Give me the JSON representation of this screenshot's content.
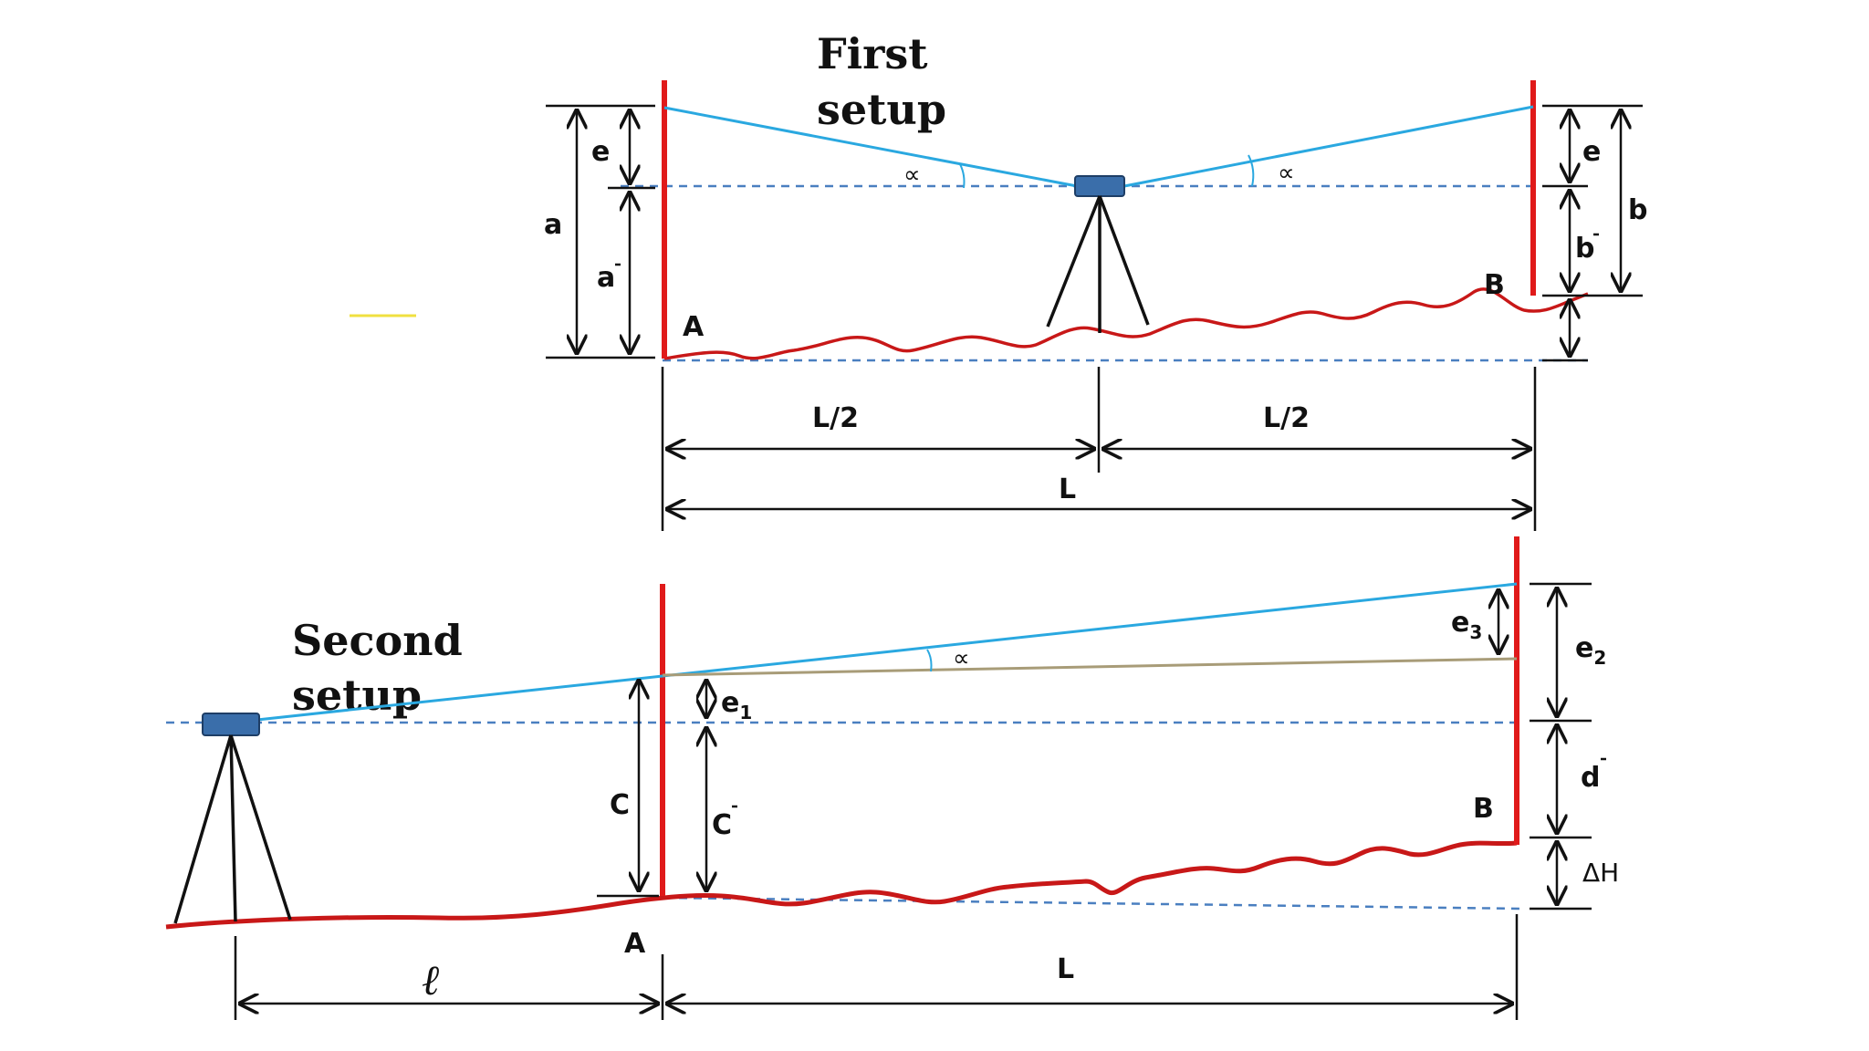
{
  "titles": {
    "first_line1": "First",
    "first_line2": "setup",
    "second_line1": "Second",
    "second_line2": "setup"
  },
  "first_setup": {
    "label_e_left": "e",
    "label_a": "a",
    "label_a_prime": "a",
    "label_A": "A",
    "label_e_right": "e",
    "label_b": "b",
    "label_b_prime": "b",
    "label_B": "B",
    "label_half_left": "L/2",
    "label_half_right": "L/2",
    "label_L": "L",
    "alpha_left": "∝",
    "alpha_right": "∝"
  },
  "second_setup": {
    "label_e3": "e",
    "label_e3_sub": "3",
    "label_e2": "e",
    "label_e2_sub": "2",
    "label_e1": "e",
    "label_e1_sub": "1",
    "label_C": "C",
    "label_C_prime": "C",
    "label_d_prime": "d",
    "label_B": "B",
    "label_dH": "ΔH",
    "label_A": "A",
    "label_ell": "ℓ",
    "label_L": "L",
    "alpha": "∝"
  },
  "colors": {
    "rod": "#e01a1a",
    "sight_line": "#2aa8e0",
    "horizontal_line": "#4a7fc0",
    "ground": "#c81818",
    "instrument": "#3a6eaa"
  }
}
